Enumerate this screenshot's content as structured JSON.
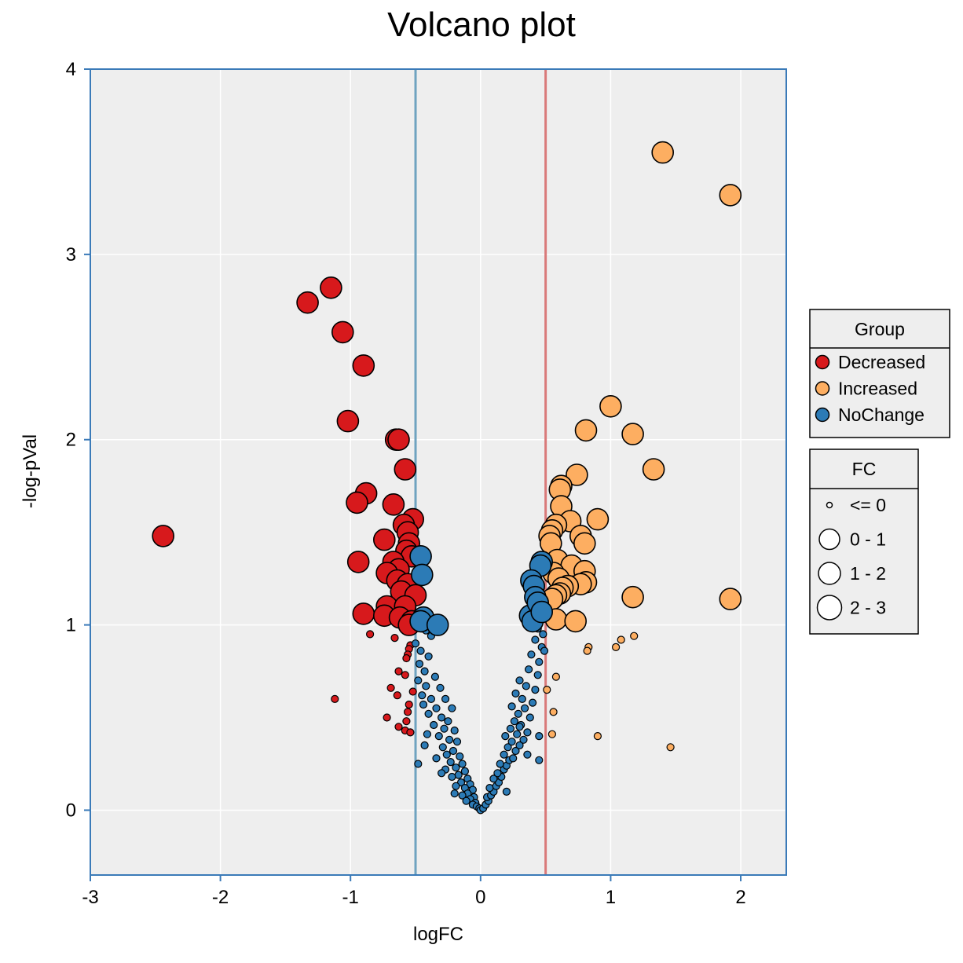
{
  "chart_data": {
    "type": "scatter",
    "title": "Volcano plot",
    "xlabel": "logFC",
    "ylabel": "-log-pVal",
    "xlim": [
      -3,
      2.35
    ],
    "ylim": [
      -0.35,
      4
    ],
    "x_ticks": [
      -3,
      -2,
      -1,
      0,
      1,
      2
    ],
    "y_ticks": [
      0,
      1,
      2,
      3,
      4
    ],
    "grid": true,
    "thresholds": {
      "down": -0.5,
      "up": 0.5
    },
    "threshold_colors": {
      "down": "#6fa3c0",
      "up": "#d97a7a"
    },
    "plot_background": "#eeeeee",
    "axis_color": "#3a7ab8",
    "groups": [
      {
        "name": "Decreased",
        "color": "#d7191c"
      },
      {
        "name": "Increased",
        "color": "#fdae61"
      },
      {
        "name": "NoChange",
        "color": "#2c7bb6"
      }
    ],
    "size_legend": {
      "title": "FC",
      "labels": [
        "<= 0",
        "0 - 1",
        "1 - 2",
        "2 - 3"
      ]
    },
    "legend_position": "right",
    "series": [
      {
        "name": "Decreased",
        "points": [
          [
            -2.44,
            1.48,
            2
          ],
          [
            -1.33,
            2.74,
            2
          ],
          [
            -1.15,
            2.82,
            2
          ],
          [
            -1.06,
            2.58,
            2
          ],
          [
            -0.9,
            2.4,
            2
          ],
          [
            -1.02,
            2.1,
            2
          ],
          [
            -0.65,
            2.0,
            2
          ],
          [
            -0.63,
            2.0,
            2
          ],
          [
            -0.58,
            1.84,
            2
          ],
          [
            -0.88,
            1.71,
            2
          ],
          [
            -0.95,
            1.66,
            2
          ],
          [
            -0.67,
            1.65,
            2
          ],
          [
            -0.52,
            1.57,
            2
          ],
          [
            -0.59,
            1.54,
            2
          ],
          [
            -0.56,
            1.5,
            2
          ],
          [
            -0.74,
            1.46,
            2
          ],
          [
            -0.55,
            1.44,
            2
          ],
          [
            -0.57,
            1.4,
            2
          ],
          [
            -0.53,
            1.37,
            2
          ],
          [
            -0.94,
            1.34,
            2
          ],
          [
            -0.67,
            1.34,
            2
          ],
          [
            -0.63,
            1.3,
            2
          ],
          [
            -0.72,
            1.28,
            2
          ],
          [
            -0.64,
            1.24,
            2
          ],
          [
            -0.56,
            1.22,
            2
          ],
          [
            -0.61,
            1.18,
            2
          ],
          [
            -0.5,
            1.16,
            2
          ],
          [
            -0.72,
            1.1,
            2
          ],
          [
            -0.58,
            1.1,
            2
          ],
          [
            -0.9,
            1.06,
            2
          ],
          [
            -0.74,
            1.05,
            2
          ],
          [
            -0.62,
            1.04,
            2
          ],
          [
            -0.53,
            1.02,
            2
          ],
          [
            -0.55,
            1.0,
            2
          ],
          [
            -0.85,
            0.95,
            0
          ],
          [
            -0.66,
            0.93,
            0
          ],
          [
            -0.54,
            0.89,
            0
          ],
          [
            -0.55,
            0.87,
            0
          ],
          [
            -0.56,
            0.84,
            0
          ],
          [
            -0.57,
            0.82,
            0
          ],
          [
            -0.63,
            0.75,
            0
          ],
          [
            -0.58,
            0.73,
            0
          ],
          [
            -0.69,
            0.66,
            0
          ],
          [
            -0.52,
            0.64,
            0
          ],
          [
            -0.64,
            0.62,
            0
          ],
          [
            -1.12,
            0.6,
            0
          ],
          [
            -0.55,
            0.57,
            0
          ],
          [
            -0.56,
            0.53,
            0
          ],
          [
            -0.72,
            0.5,
            0
          ],
          [
            -0.57,
            0.48,
            0
          ],
          [
            -0.63,
            0.45,
            0
          ],
          [
            -0.58,
            0.43,
            0
          ],
          [
            -0.54,
            0.42,
            0
          ]
        ]
      },
      {
        "name": "Increased",
        "points": [
          [
            1.4,
            3.55,
            2
          ],
          [
            1.92,
            3.32,
            2
          ],
          [
            1.0,
            2.18,
            2
          ],
          [
            0.81,
            2.05,
            2
          ],
          [
            1.17,
            2.03,
            2
          ],
          [
            1.33,
            1.84,
            2
          ],
          [
            0.74,
            1.81,
            2
          ],
          [
            0.62,
            1.75,
            2
          ],
          [
            0.61,
            1.73,
            2
          ],
          [
            0.62,
            1.64,
            2
          ],
          [
            0.9,
            1.57,
            2
          ],
          [
            0.69,
            1.56,
            2
          ],
          [
            0.58,
            1.54,
            2
          ],
          [
            0.55,
            1.51,
            2
          ],
          [
            0.77,
            1.48,
            2
          ],
          [
            0.53,
            1.48,
            2
          ],
          [
            0.8,
            1.44,
            2
          ],
          [
            0.54,
            1.44,
            2
          ],
          [
            0.59,
            1.35,
            2
          ],
          [
            0.7,
            1.32,
            2
          ],
          [
            0.8,
            1.29,
            2
          ],
          [
            0.56,
            1.28,
            2
          ],
          [
            0.6,
            1.25,
            2
          ],
          [
            0.81,
            1.23,
            2
          ],
          [
            0.77,
            1.22,
            2
          ],
          [
            0.67,
            1.21,
            2
          ],
          [
            0.63,
            1.2,
            2
          ],
          [
            0.61,
            1.17,
            2
          ],
          [
            0.58,
            1.16,
            2
          ],
          [
            0.55,
            1.14,
            2
          ],
          [
            1.17,
            1.15,
            2
          ],
          [
            1.92,
            1.14,
            2
          ],
          [
            0.58,
            1.03,
            2
          ],
          [
            0.73,
            1.02,
            2
          ],
          [
            1.18,
            0.94,
            0
          ],
          [
            1.08,
            0.92,
            0
          ],
          [
            1.04,
            0.88,
            0
          ],
          [
            0.83,
            0.88,
            0
          ],
          [
            0.82,
            0.86,
            0
          ],
          [
            0.58,
            0.72,
            0
          ],
          [
            0.51,
            0.65,
            0
          ],
          [
            0.56,
            0.53,
            0
          ],
          [
            0.55,
            0.41,
            0
          ],
          [
            0.9,
            0.4,
            0
          ],
          [
            1.46,
            0.34,
            0
          ]
        ]
      },
      {
        "name": "NoChange",
        "points": [
          [
            -0.46,
            1.37,
            2
          ],
          [
            -0.45,
            1.27,
            2
          ],
          [
            -0.44,
            1.04,
            2
          ],
          [
            -0.46,
            1.02,
            2
          ],
          [
            -0.33,
            1.0,
            2
          ],
          [
            0.47,
            1.34,
            2
          ],
          [
            0.46,
            1.32,
            2
          ],
          [
            0.39,
            1.24,
            2
          ],
          [
            0.41,
            1.21,
            2
          ],
          [
            0.42,
            1.15,
            2
          ],
          [
            0.38,
            1.05,
            2
          ],
          [
            0.4,
            1.02,
            2
          ],
          [
            0.44,
            1.12,
            2
          ],
          [
            0.47,
            1.07,
            2
          ],
          [
            -0.45,
            0.98,
            0
          ],
          [
            -0.42,
            0.97,
            0
          ],
          [
            -0.38,
            0.94,
            0
          ],
          [
            -0.5,
            0.9,
            0
          ],
          [
            -0.46,
            0.86,
            0
          ],
          [
            -0.4,
            0.83,
            0
          ],
          [
            -0.47,
            0.79,
            0
          ],
          [
            -0.43,
            0.75,
            0
          ],
          [
            -0.35,
            0.72,
            0
          ],
          [
            -0.48,
            0.7,
            0
          ],
          [
            -0.42,
            0.67,
            0
          ],
          [
            -0.31,
            0.66,
            0
          ],
          [
            -0.45,
            0.62,
            0
          ],
          [
            -0.38,
            0.6,
            0
          ],
          [
            -0.27,
            0.6,
            0
          ],
          [
            -0.44,
            0.57,
            0
          ],
          [
            -0.34,
            0.55,
            0
          ],
          [
            -0.22,
            0.55,
            0
          ],
          [
            -0.4,
            0.52,
            0
          ],
          [
            -0.3,
            0.5,
            0
          ],
          [
            -0.25,
            0.48,
            0
          ],
          [
            -0.36,
            0.46,
            0
          ],
          [
            -0.28,
            0.44,
            0
          ],
          [
            -0.2,
            0.43,
            0
          ],
          [
            -0.41,
            0.41,
            0
          ],
          [
            -0.32,
            0.4,
            0
          ],
          [
            -0.24,
            0.38,
            0
          ],
          [
            -0.18,
            0.37,
            0
          ],
          [
            -0.43,
            0.35,
            0
          ],
          [
            -0.29,
            0.34,
            0
          ],
          [
            -0.21,
            0.32,
            0
          ],
          [
            -0.26,
            0.3,
            0
          ],
          [
            -0.16,
            0.29,
            0
          ],
          [
            -0.34,
            0.28,
            0
          ],
          [
            -0.48,
            0.25,
            0
          ],
          [
            -0.23,
            0.26,
            0
          ],
          [
            -0.14,
            0.25,
            0
          ],
          [
            -0.19,
            0.23,
            0
          ],
          [
            -0.27,
            0.22,
            0
          ],
          [
            -0.12,
            0.21,
            0
          ],
          [
            -0.17,
            0.19,
            0
          ],
          [
            -0.22,
            0.18,
            0
          ],
          [
            -0.1,
            0.17,
            0
          ],
          [
            -0.15,
            0.15,
            0
          ],
          [
            -0.08,
            0.14,
            0
          ],
          [
            -0.19,
            0.13,
            0
          ],
          [
            -0.12,
            0.12,
            0
          ],
          [
            -0.06,
            0.11,
            0
          ],
          [
            -0.1,
            0.09,
            0
          ],
          [
            -0.14,
            0.08,
            0
          ],
          [
            -0.05,
            0.07,
            0
          ],
          [
            -0.08,
            0.06,
            0
          ],
          [
            -0.11,
            0.05,
            0
          ],
          [
            -0.04,
            0.04,
            0
          ],
          [
            -0.06,
            0.03,
            0
          ],
          [
            -0.03,
            0.02,
            0
          ],
          [
            -0.01,
            0.01,
            0
          ],
          [
            0.0,
            0.0,
            0
          ],
          [
            0.02,
            0.01,
            0
          ],
          [
            0.04,
            0.03,
            0
          ],
          [
            0.06,
            0.05,
            0
          ],
          [
            0.05,
            0.07,
            0
          ],
          [
            0.08,
            0.08,
            0
          ],
          [
            0.1,
            0.1,
            0
          ],
          [
            0.07,
            0.12,
            0
          ],
          [
            0.12,
            0.13,
            0
          ],
          [
            0.14,
            0.15,
            0
          ],
          [
            0.1,
            0.17,
            0
          ],
          [
            0.16,
            0.18,
            0
          ],
          [
            0.13,
            0.2,
            0
          ],
          [
            0.18,
            0.22,
            0
          ],
          [
            0.2,
            0.24,
            0
          ],
          [
            0.15,
            0.25,
            0
          ],
          [
            0.22,
            0.27,
            0
          ],
          [
            0.25,
            0.28,
            0
          ],
          [
            0.18,
            0.3,
            0
          ],
          [
            0.27,
            0.32,
            0
          ],
          [
            0.21,
            0.34,
            0
          ],
          [
            0.3,
            0.35,
            0
          ],
          [
            0.24,
            0.37,
            0
          ],
          [
            0.33,
            0.38,
            0
          ],
          [
            0.19,
            0.4,
            0
          ],
          [
            0.28,
            0.41,
            0
          ],
          [
            0.36,
            0.42,
            0
          ],
          [
            0.23,
            0.44,
            0
          ],
          [
            0.31,
            0.46,
            0
          ],
          [
            0.26,
            0.48,
            0
          ],
          [
            0.38,
            0.5,
            0
          ],
          [
            0.29,
            0.52,
            0
          ],
          [
            0.34,
            0.55,
            0
          ],
          [
            0.24,
            0.56,
            0
          ],
          [
            0.4,
            0.58,
            0
          ],
          [
            0.32,
            0.6,
            0
          ],
          [
            0.27,
            0.63,
            0
          ],
          [
            0.42,
            0.65,
            0
          ],
          [
            0.35,
            0.67,
            0
          ],
          [
            0.3,
            0.7,
            0
          ],
          [
            0.44,
            0.73,
            0
          ],
          [
            0.37,
            0.76,
            0
          ],
          [
            0.45,
            0.8,
            0
          ],
          [
            0.39,
            0.84,
            0
          ],
          [
            0.47,
            0.88,
            0
          ],
          [
            0.42,
            0.92,
            0
          ],
          [
            0.48,
            0.95,
            0
          ],
          [
            0.44,
            0.98,
            0
          ],
          [
            0.49,
            0.86,
            0
          ],
          [
            0.3,
            0.45,
            0
          ],
          [
            0.45,
            0.4,
            0
          ],
          [
            0.36,
            0.3,
            0
          ],
          [
            0.45,
            0.27,
            0
          ],
          [
            -0.3,
            0.2,
            0
          ],
          [
            -0.2,
            0.09,
            0
          ],
          [
            0.2,
            0.1,
            0
          ]
        ]
      }
    ]
  }
}
